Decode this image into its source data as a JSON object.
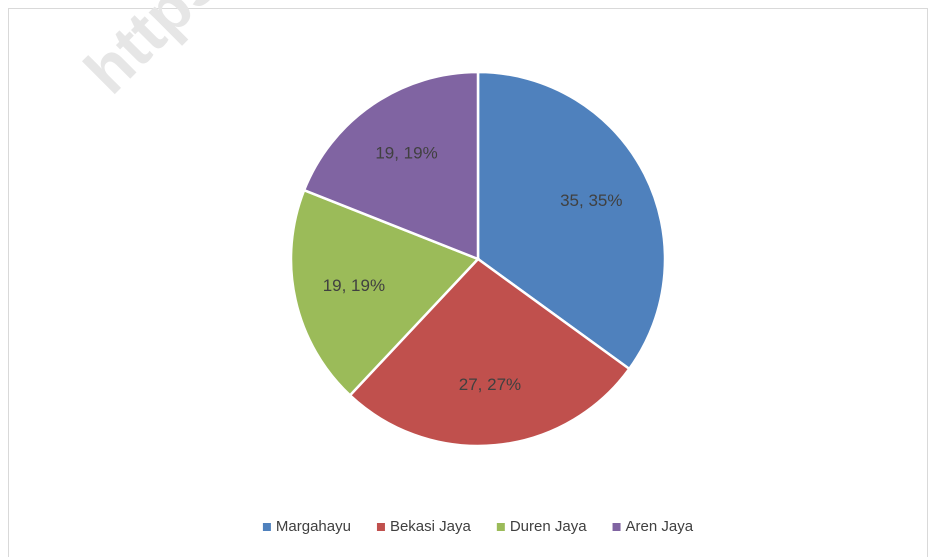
{
  "chart_data": {
    "type": "pie",
    "categories": [
      "Margahayu",
      "Bekasi Jaya",
      "Duren Jaya",
      "Aren Jaya"
    ],
    "values": [
      35,
      27,
      19,
      19
    ],
    "value_labels": [
      "35, 35%",
      "27, 27%",
      "19, 19%",
      "19, 19%"
    ],
    "colors": [
      "#4f81bd",
      "#c0504d",
      "#9bbb59",
      "#8064a2"
    ],
    "watermark": "https",
    "legend": "bottom"
  }
}
